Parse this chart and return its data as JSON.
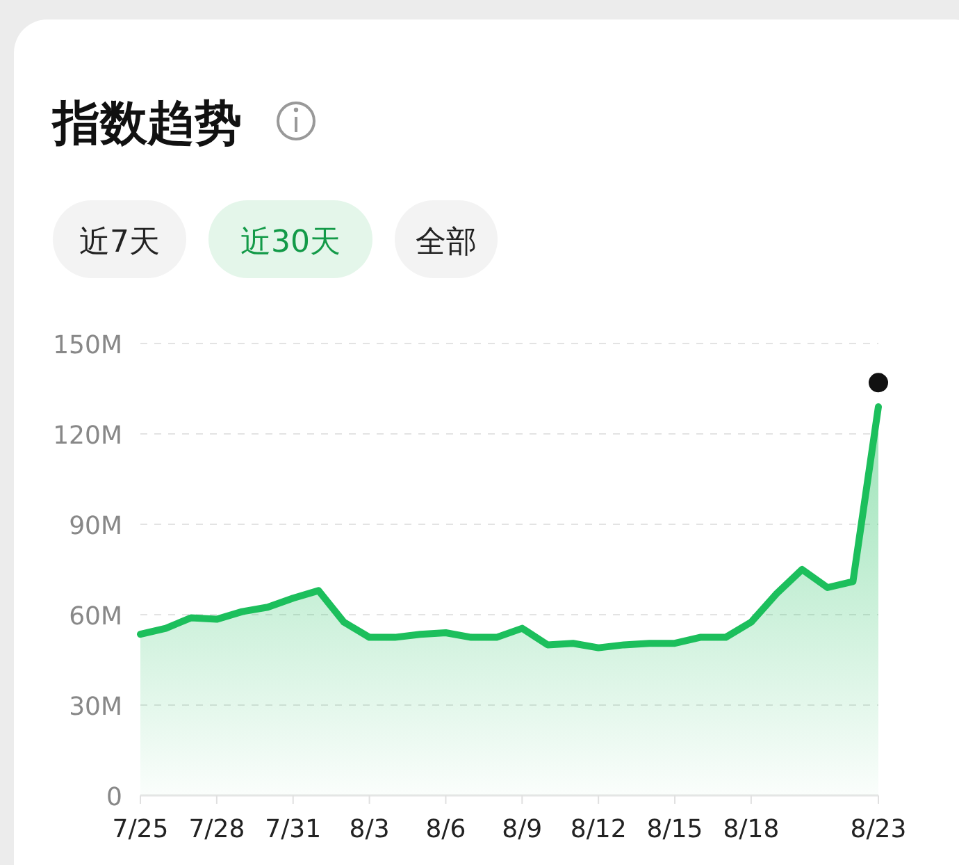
{
  "chart_data": {
    "type": "area",
    "title": "指数趋势",
    "annotations": [
      "近7天",
      "近30天",
      "全部"
    ],
    "categories": [
      "7/25",
      null,
      null,
      "7/28",
      null,
      null,
      "7/31",
      null,
      null,
      "8/3",
      null,
      null,
      "8/6",
      null,
      null,
      "8/9",
      null,
      null,
      "8/12",
      null,
      null,
      "8/15",
      null,
      null,
      "8/18",
      null,
      null,
      null,
      null,
      "8/23"
    ],
    "series": [
      {
        "color": "#1cbf5c",
        "values": [
          53.5,
          55.5,
          59,
          58.5,
          61,
          62.5,
          65.5,
          68,
          57.5,
          52.5,
          52.5,
          53.5,
          54,
          52.5,
          52.5,
          55.5,
          50,
          50.5,
          49,
          50,
          50.5,
          50.5,
          52.5,
          52.5,
          57.5,
          67,
          75,
          69,
          71,
          129
        ]
      },
      {
        "type": "scatter",
        "color": "#111111",
        "x": [
          "8/23"
        ],
        "values": [
          137
        ]
      }
    ],
    "ylim": [
      0,
      150
    ],
    "yticks": [
      {
        "value": 0,
        "label": "0"
      },
      {
        "value": 30,
        "label": "30M"
      },
      {
        "value": 60,
        "label": "60M"
      },
      {
        "value": 90,
        "label": "90M"
      },
      {
        "value": 120,
        "label": "120M"
      },
      {
        "value": 150,
        "label": "150M"
      }
    ],
    "grid": "y"
  }
}
